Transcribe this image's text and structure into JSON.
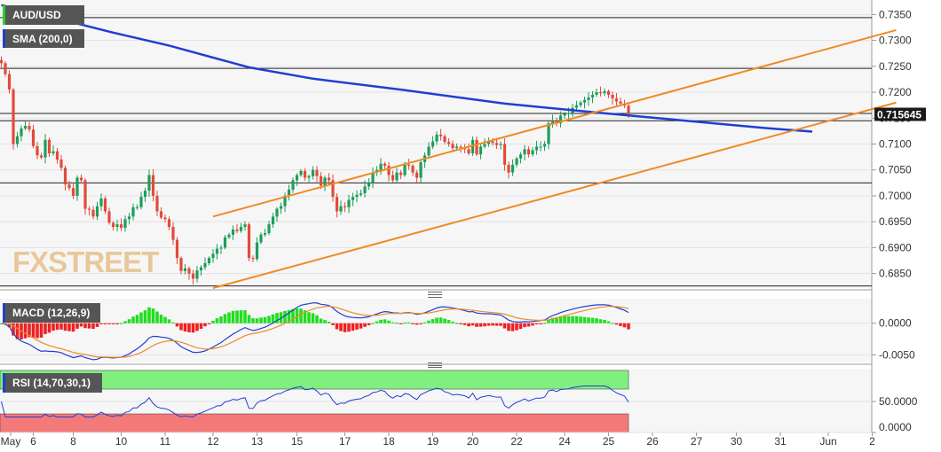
{
  "chart_data": {
    "type": "candlestick",
    "symbol": "AUD/USD",
    "watermark": "FXSTREET",
    "overlay": {
      "name": "SMA (200,0)",
      "color": "#1f3fd1"
    },
    "current_price": "0.715645",
    "price_axis": {
      "range": [
        0.6822,
        0.7378
      ],
      "ticks": [
        "0.7350",
        "0.7300",
        "0.7250",
        "0.7200",
        "0.7150",
        "0.7100",
        "0.7050",
        "0.7000",
        "0.6950",
        "0.6900",
        "0.6850"
      ]
    },
    "horizontal_levels": [
      0.7344,
      0.7246,
      0.7159,
      0.7145,
      0.7025,
      0.6826
    ],
    "channel": {
      "color": "#f08a24",
      "upper": {
        "from": [
          0,
          0.696
        ],
        "to": [
          171,
          0.732
        ]
      },
      "lower": {
        "from": [
          0,
          0.6822
        ],
        "to": [
          171,
          0.718
        ]
      }
    },
    "sma_200": [
      [
        -53,
        0.7368
      ],
      [
        -43,
        0.735
      ],
      [
        -25,
        0.7315
      ],
      [
        -11,
        0.729
      ],
      [
        9,
        0.7248
      ],
      [
        25,
        0.7226
      ],
      [
        47,
        0.7205
      ],
      [
        73,
        0.7178
      ],
      [
        97,
        0.716
      ],
      [
        114,
        0.7148
      ],
      [
        128,
        0.7138
      ],
      [
        138,
        0.7131
      ],
      [
        150,
        0.7124
      ]
    ],
    "x_axis": {
      "ticks": [
        {
          "label": "May",
          "bar": -53
        },
        {
          "label": "6",
          "bar": -45
        },
        {
          "label": "8",
          "bar": -35
        },
        {
          "label": "10",
          "bar": -23
        },
        {
          "label": "11",
          "bar": -12
        },
        {
          "label": "12",
          "bar": 0
        },
        {
          "label": "13",
          "bar": 11
        },
        {
          "label": "15",
          "bar": 21
        },
        {
          "label": "17",
          "bar": 33
        },
        {
          "label": "18",
          "bar": 44
        },
        {
          "label": "19",
          "bar": 55
        },
        {
          "label": "20",
          "bar": 65
        },
        {
          "label": "22",
          "bar": 76
        },
        {
          "label": "24",
          "bar": 88
        },
        {
          "label": "25",
          "bar": 99
        },
        {
          "label": "26",
          "bar": 110
        },
        {
          "label": "27",
          "bar": 121
        },
        {
          "label": "30",
          "bar": 131
        },
        {
          "label": "31",
          "bar": 142
        },
        {
          "label": "Jun",
          "bar": 154
        },
        {
          "label": "2",
          "bar": 165
        }
      ]
    },
    "candles_close": [
      0.7256,
      0.7235,
      0.7205,
      0.71,
      0.7115,
      0.713,
      0.7135,
      0.7128,
      0.7096,
      0.7078,
      0.7074,
      0.7108,
      0.7082,
      0.7086,
      0.707,
      0.7054,
      0.7022,
      0.7015,
      0.7,
      0.7035,
      0.703,
      0.6975,
      0.6973,
      0.696,
      0.698,
      0.6995,
      0.697,
      0.6948,
      0.694,
      0.6945,
      0.6938,
      0.6955,
      0.696,
      0.6978,
      0.6978,
      0.6998,
      0.701,
      0.704,
      0.7,
      0.697,
      0.6958,
      0.6955,
      0.694,
      0.6915,
      0.688,
      0.6855,
      0.686,
      0.685,
      0.684,
      0.6856,
      0.6862,
      0.687,
      0.688,
      0.6888,
      0.6898,
      0.69,
      0.692,
      0.6925,
      0.6935,
      0.6932,
      0.694,
      0.6945,
      0.688,
      0.6878,
      0.691,
      0.6925,
      0.6928,
      0.6945,
      0.696,
      0.6975,
      0.698,
      0.7,
      0.7012,
      0.703,
      0.704,
      0.7048,
      0.7035,
      0.7038,
      0.705,
      0.7038,
      0.702,
      0.7035,
      0.703,
      0.6998,
      0.697,
      0.698,
      0.6978,
      0.6992,
      0.6998,
      0.7002,
      0.7005,
      0.7018,
      0.7025,
      0.7045,
      0.705,
      0.7062,
      0.7058,
      0.704,
      0.703,
      0.7045,
      0.704,
      0.706,
      0.7058,
      0.7045,
      0.7035,
      0.7065,
      0.7078,
      0.7095,
      0.7105,
      0.7118,
      0.7115,
      0.7104,
      0.71,
      0.7092,
      0.7095,
      0.7093,
      0.709,
      0.7082,
      0.7108,
      0.708,
      0.7095,
      0.71,
      0.7105,
      0.7102,
      0.7098,
      0.71,
      0.706,
      0.7045,
      0.706,
      0.7072,
      0.708,
      0.709,
      0.708,
      0.7088,
      0.7095,
      0.7095,
      0.71,
      0.714,
      0.7145,
      0.714,
      0.7155,
      0.7158,
      0.716,
      0.717,
      0.7175,
      0.718,
      0.7185,
      0.719,
      0.7195,
      0.72,
      0.7198,
      0.7202,
      0.7195,
      0.7188,
      0.7182,
      0.7178,
      0.7174,
      0.7156
    ],
    "macd": {
      "label": "MACD (12,26,9)",
      "range": [
        -0.0062,
        0.0036
      ],
      "ticks": [
        "0.0000",
        "-0.0050"
      ],
      "positive_color": "#22dd22",
      "negative_color": "#ee2222",
      "macd_color": "#1f3fd1",
      "signal_color": "#f08a24"
    },
    "rsi": {
      "label": "RSI (14,70,30,1)",
      "range": [
        0,
        100
      ],
      "ticks": [
        "50.0000",
        "0.0000"
      ],
      "overbought": 70,
      "oversold": 30,
      "line_color": "#1f3fd1",
      "overbought_fill": "#7ff07f",
      "oversold_fill": "#f47a7a"
    }
  }
}
